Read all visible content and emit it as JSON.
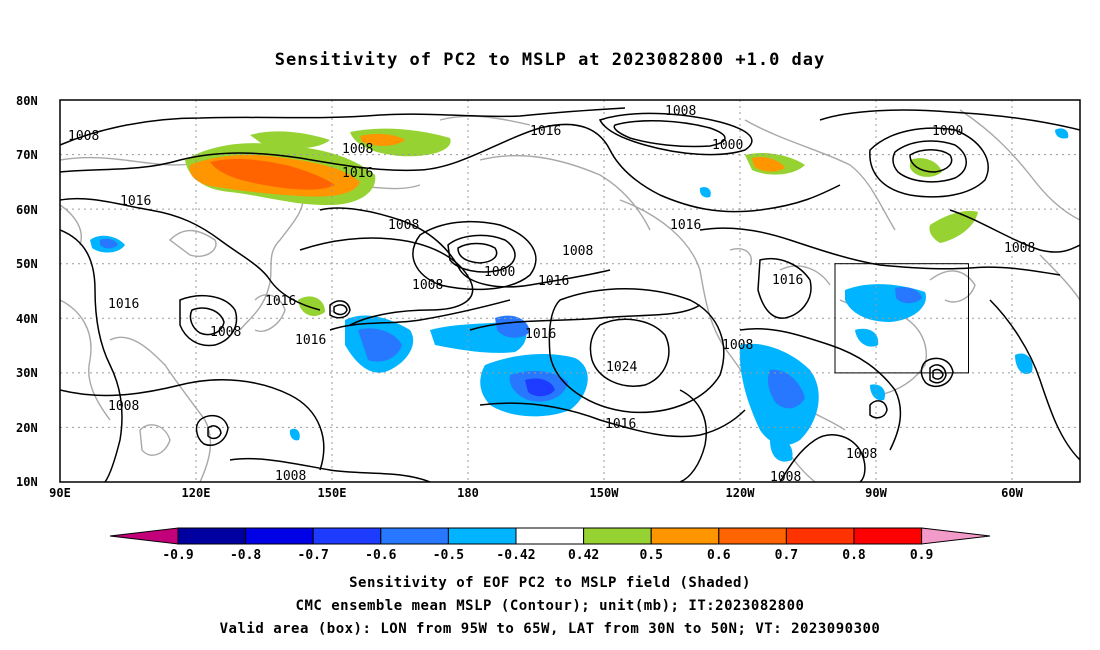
{
  "title": "Sensitivity of PC2 to MSLP at 2023082800 +1.0 day",
  "axes": {
    "lat_labels": [
      "80N",
      "70N",
      "60N",
      "50N",
      "40N",
      "30N",
      "20N",
      "10N"
    ],
    "lon_labels": [
      "90E",
      "120E",
      "150E",
      "180",
      "150W",
      "120W",
      "90W",
      "60W"
    ]
  },
  "colorbar": {
    "labels": [
      "-0.9",
      "-0.8",
      "-0.7",
      "-0.6",
      "-0.5",
      "-0.42",
      "0.42",
      "0.5",
      "0.6",
      "0.7",
      "0.8",
      "0.9"
    ],
    "colors": [
      "#c2007a",
      "#0000a0",
      "#0000e6",
      "#1e3cff",
      "#2878ff",
      "#00b4ff",
      "#ffffff",
      "#96d232",
      "#ff9600",
      "#ff6400",
      "#ff3200",
      "#ff0000",
      "#f29ac8"
    ]
  },
  "contour_labels": [
    "1008",
    "1008",
    "1016",
    "1016",
    "1008",
    "1000",
    "1000",
    "1016",
    "1016",
    "1008",
    "1008",
    "1016",
    "1008",
    "1000",
    "1016",
    "1008",
    "1016",
    "1016",
    "1008",
    "1016",
    "1024",
    "1016",
    "1008",
    "1008",
    "1016",
    "1008",
    "1008",
    "1008"
  ],
  "valid_box": {
    "lon_from": "95W",
    "lon_to": "65W",
    "lat_from": "30N",
    "lat_to": "50N"
  },
  "captions": {
    "line1": "Sensitivity of EOF PC2 to MSLP field (Shaded)",
    "line2": "CMC ensemble mean MSLP (Contour); unit(mb); IT:2023082800",
    "line3": "Valid area (box): LON from 95W to 65W, LAT from 30N to 50N; VT: 2023090300"
  }
}
